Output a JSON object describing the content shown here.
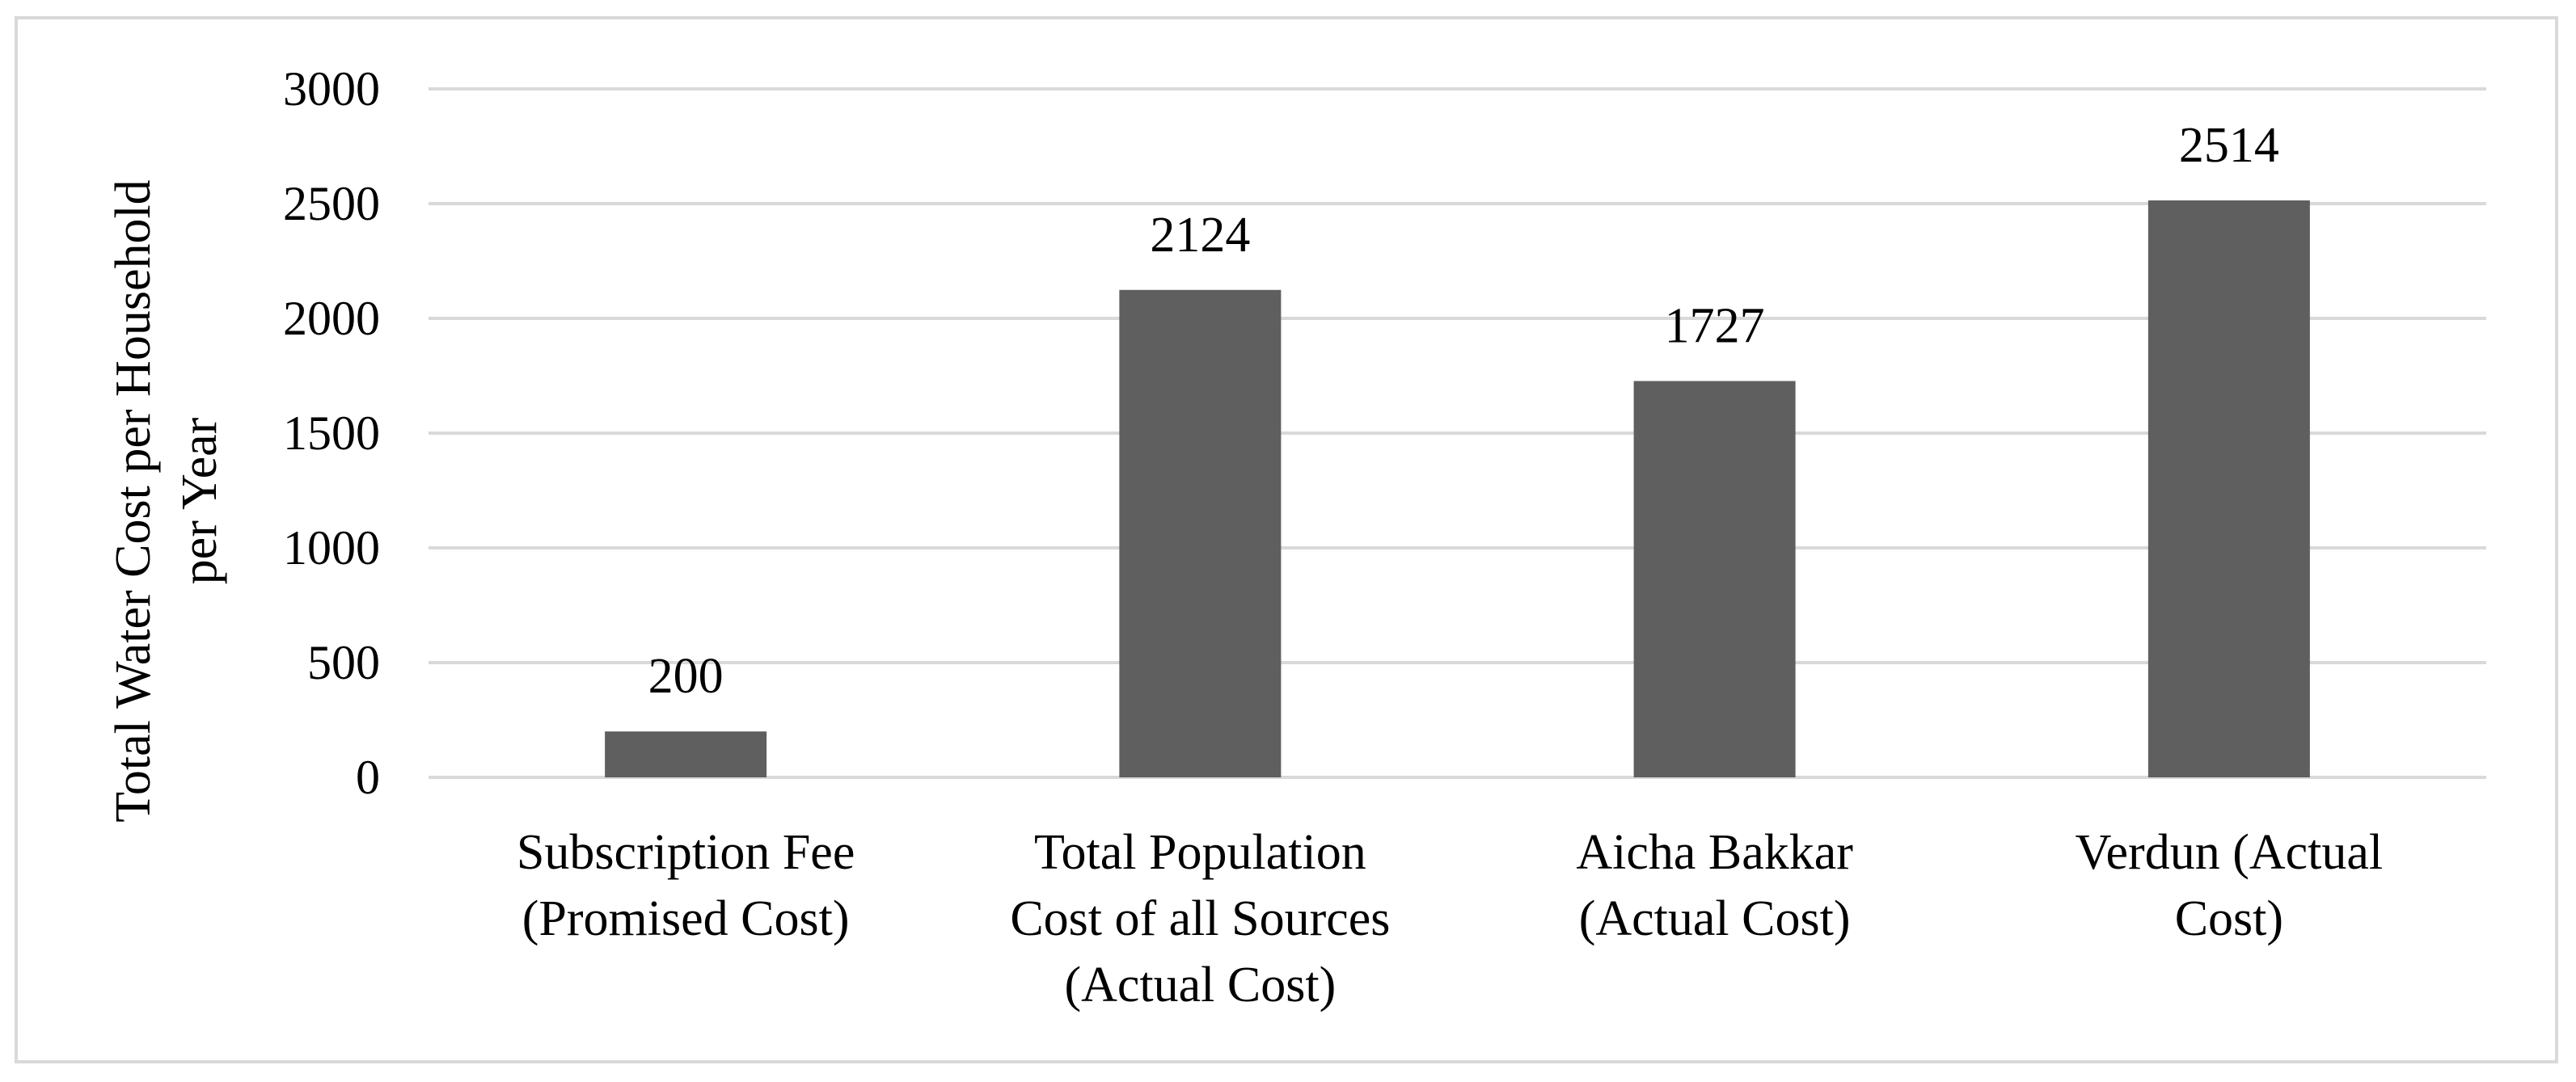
{
  "chart_data": {
    "type": "bar",
    "title": "",
    "xlabel": "",
    "ylabel": [
      "Total Water Cost per Household",
      "per Year"
    ],
    "ylim": [
      0,
      3000
    ],
    "yticks": [
      0,
      500,
      1000,
      1500,
      2000,
      2500,
      3000
    ],
    "grid": true,
    "legend": "none",
    "bar_color": "#5f5f5f",
    "grid_color": "#d9d9d9",
    "categories": [
      [
        "Subscription Fee",
        "(Promised Cost)"
      ],
      [
        "Total Population",
        "Cost of all Sources",
        "(Actual Cost)"
      ],
      [
        "Aicha Bakkar",
        "(Actual Cost)"
      ],
      [
        "Verdun (Actual",
        "Cost)"
      ]
    ],
    "values": [
      200,
      2124,
      1727,
      2514
    ],
    "data_labels": [
      "200",
      "2124",
      "1727",
      "2514"
    ]
  }
}
